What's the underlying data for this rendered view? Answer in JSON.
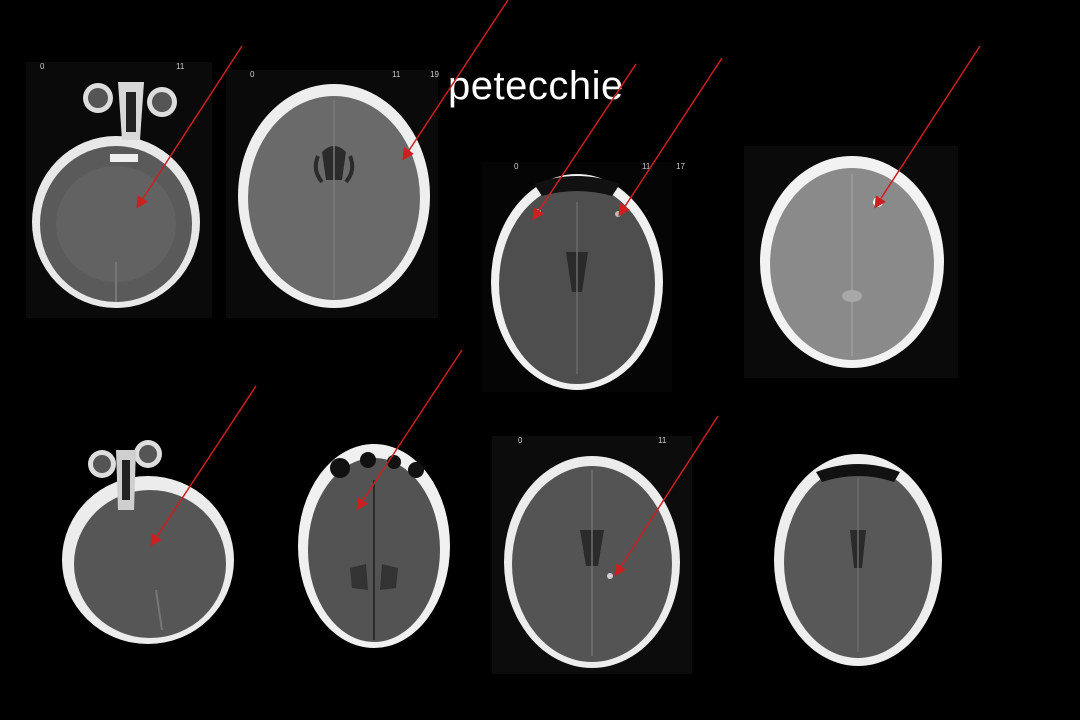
{
  "title": "petecchie",
  "colors": {
    "arrow": "#cc1f1f",
    "background": "#000000"
  },
  "scans": [
    {
      "name": "scan-skull-base-1",
      "ticks": [
        "0",
        "11"
      ]
    },
    {
      "name": "scan-ventricles-1",
      "ticks": [
        "0",
        "11",
        "19"
      ]
    },
    {
      "name": "scan-frontal-1",
      "ticks": [
        "0",
        "11",
        "17"
      ]
    },
    {
      "name": "scan-vertex-1",
      "ticks": []
    },
    {
      "name": "scan-skull-base-2",
      "ticks": []
    },
    {
      "name": "scan-frontal-2",
      "ticks": []
    },
    {
      "name": "scan-ventricles-2",
      "ticks": [
        "0",
        "11"
      ]
    },
    {
      "name": "scan-ventricles-3",
      "ticks": []
    }
  ]
}
